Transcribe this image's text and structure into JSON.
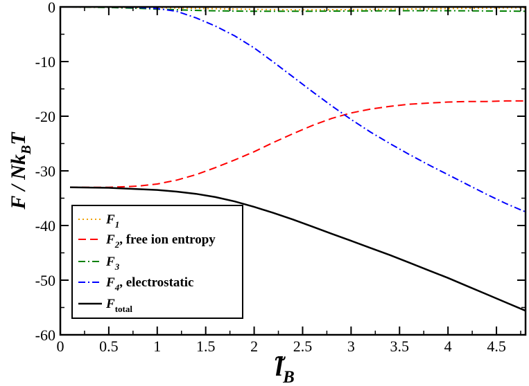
{
  "chart_data": {
    "type": "line",
    "title": "",
    "xlabel": {
      "main": "l",
      "sub": "B",
      "decoration": "~"
    },
    "ylabel": {
      "p1": "F / Nk",
      "sub": "B",
      "p2": "T"
    },
    "xlim": [
      0,
      4.8
    ],
    "ylim": [
      -60,
      0
    ],
    "xticks": [
      {
        "v": 0,
        "label": "0"
      },
      {
        "v": 0.5,
        "label": "0.5"
      },
      {
        "v": 1,
        "label": "1"
      },
      {
        "v": 1.5,
        "label": "1.5"
      },
      {
        "v": 2,
        "label": "2"
      },
      {
        "v": 2.5,
        "label": "2.5"
      },
      {
        "v": 3,
        "label": "3"
      },
      {
        "v": 3.5,
        "label": "3.5"
      },
      {
        "v": 4,
        "label": "4"
      },
      {
        "v": 4.5,
        "label": "4.5"
      }
    ],
    "yticks": [
      {
        "v": 0,
        "label": "0"
      },
      {
        "v": -10,
        "label": "-10"
      },
      {
        "v": -20,
        "label": "-20"
      },
      {
        "v": -30,
        "label": "-30"
      },
      {
        "v": -40,
        "label": "-40"
      },
      {
        "v": -50,
        "label": "-50"
      },
      {
        "v": -60,
        "label": "-60"
      }
    ],
    "grid": false,
    "legend_position": "bottom-left",
    "series": [
      {
        "name": "F_1",
        "sym": "F",
        "sub": "1",
        "suffix": "",
        "color": "#f0a000",
        "dash": "2,4",
        "x": [
          0.1,
          0.5,
          1.0,
          1.5,
          2.0,
          2.5,
          3.0,
          3.5,
          4.0,
          4.5,
          4.8
        ],
        "y": [
          0,
          -0.05,
          -0.15,
          -0.3,
          -0.45,
          -0.55,
          -0.5,
          -0.4,
          -0.3,
          -0.2,
          -0.15
        ]
      },
      {
        "name": "F_2",
        "sym": "F",
        "sub": "2",
        "suffix": ", free ion entropy",
        "color": "#ff0000",
        "dash": "11,6",
        "x": [
          0.1,
          0.5,
          0.8,
          1.0,
          1.2,
          1.4,
          1.6,
          1.8,
          2.0,
          2.2,
          2.4,
          2.6,
          2.8,
          3.0,
          3.2,
          3.4,
          3.6,
          3.8,
          4.0,
          4.2,
          4.4,
          4.6,
          4.8
        ],
        "y": [
          -33.0,
          -33.0,
          -32.8,
          -32.4,
          -31.7,
          -30.7,
          -29.4,
          -28.0,
          -26.5,
          -24.8,
          -23.2,
          -21.7,
          -20.4,
          -19.4,
          -18.7,
          -18.2,
          -17.8,
          -17.6,
          -17.4,
          -17.3,
          -17.3,
          -17.2,
          -17.2
        ]
      },
      {
        "name": "F_3",
        "sym": "F",
        "sub": "3",
        "suffix": "",
        "color": "#008000",
        "dash": "10,4,2,4",
        "x": [
          0.1,
          0.5,
          0.8,
          1.0,
          1.5,
          2.0,
          2.5,
          3.0,
          3.5,
          4.0,
          4.5,
          4.8
        ],
        "y": [
          0,
          -0.1,
          -0.25,
          -0.4,
          -0.7,
          -0.8,
          -0.8,
          -0.75,
          -0.7,
          -0.7,
          -0.75,
          -0.8
        ]
      },
      {
        "name": "F_4",
        "sym": "F",
        "sub": "4",
        "suffix": ", electrostatic",
        "color": "#0000ff",
        "dash": "10,4,2,4",
        "x": [
          0.1,
          0.5,
          0.8,
          1.0,
          1.2,
          1.4,
          1.6,
          1.8,
          2.0,
          2.2,
          2.4,
          2.6,
          2.8,
          3.0,
          3.2,
          3.4,
          3.6,
          3.8,
          4.0,
          4.2,
          4.4,
          4.6,
          4.8
        ],
        "y": [
          0,
          0,
          -0.1,
          -0.3,
          -0.8,
          -2.0,
          -3.5,
          -5.3,
          -7.5,
          -10.1,
          -12.8,
          -15.5,
          -18.1,
          -20.6,
          -22.9,
          -25.0,
          -27.0,
          -28.9,
          -30.7,
          -32.5,
          -34.3,
          -36.0,
          -37.5
        ]
      },
      {
        "name": "F_total",
        "sym": "F",
        "sub": "total",
        "suffix": "",
        "color": "#000000",
        "dash": "",
        "x": [
          0.1,
          0.5,
          1.0,
          1.2,
          1.4,
          1.6,
          1.8,
          2.0,
          2.2,
          2.4,
          2.6,
          2.8,
          3.0,
          3.2,
          3.4,
          3.6,
          3.8,
          4.0,
          4.2,
          4.4,
          4.6,
          4.8
        ],
        "y": [
          -33.0,
          -33.1,
          -33.5,
          -33.8,
          -34.2,
          -34.8,
          -35.6,
          -36.6,
          -37.7,
          -38.9,
          -40.2,
          -41.5,
          -42.8,
          -44.1,
          -45.4,
          -46.8,
          -48.2,
          -49.6,
          -51.1,
          -52.6,
          -54.1,
          -55.6
        ]
      }
    ]
  }
}
